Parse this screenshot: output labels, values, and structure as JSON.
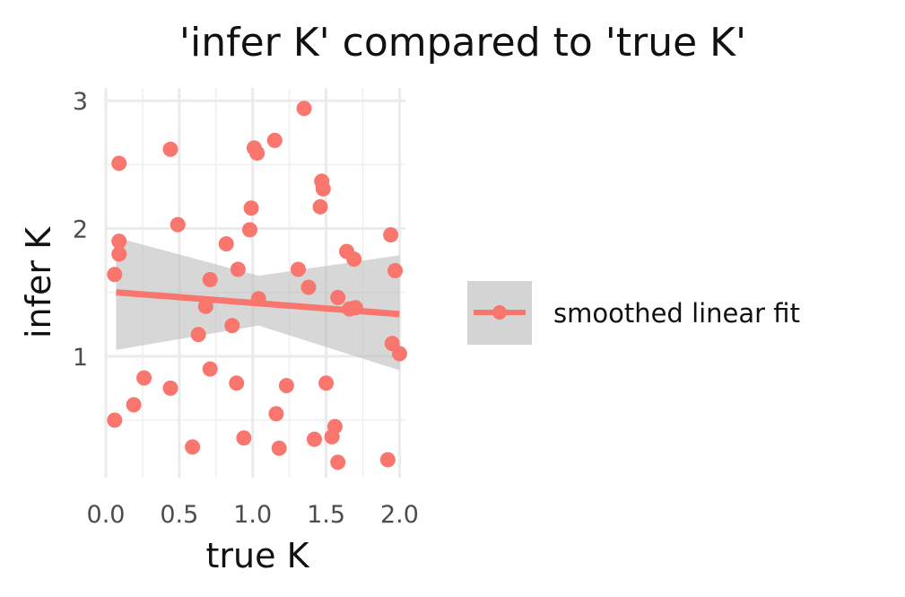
{
  "chart_data": {
    "type": "scatter",
    "title": "'infer K' compared to 'true K'",
    "xlabel": "true K",
    "ylabel": "infer K",
    "xlim": [
      0.0,
      2.04
    ],
    "ylim": [
      0.05,
      3.1
    ],
    "x_ticks": [
      0.0,
      0.5,
      1.0,
      1.5,
      2.0
    ],
    "x_tick_labels": [
      "0.0",
      "0.5",
      "1.0",
      "1.5",
      "2.0"
    ],
    "y_ticks": [
      1,
      2,
      3
    ],
    "y_tick_labels": [
      "1",
      "2",
      "3"
    ],
    "grid": true,
    "legend_position": "right",
    "point_color": "#f8766d",
    "fit_color": "#f8766d",
    "band_color": "#bdbdbd",
    "points": [
      [
        0.09,
        2.51
      ],
      [
        0.44,
        2.62
      ],
      [
        0.06,
        1.64
      ],
      [
        0.09,
        1.8
      ],
      [
        0.09,
        1.9
      ],
      [
        0.06,
        0.5
      ],
      [
        0.19,
        0.62
      ],
      [
        0.26,
        0.83
      ],
      [
        0.44,
        0.75
      ],
      [
        0.49,
        2.03
      ],
      [
        0.59,
        0.29
      ],
      [
        0.63,
        1.17
      ],
      [
        0.68,
        1.39
      ],
      [
        0.71,
        1.6
      ],
      [
        0.71,
        0.9
      ],
      [
        0.82,
        1.88
      ],
      [
        0.86,
        1.24
      ],
      [
        0.89,
        0.79
      ],
      [
        0.9,
        1.68
      ],
      [
        0.94,
        0.36
      ],
      [
        0.98,
        1.99
      ],
      [
        0.99,
        2.16
      ],
      [
        1.01,
        2.63
      ],
      [
        1.03,
        2.59
      ],
      [
        1.04,
        1.45
      ],
      [
        1.15,
        2.69
      ],
      [
        1.16,
        0.55
      ],
      [
        1.18,
        0.28
      ],
      [
        1.23,
        0.77
      ],
      [
        1.31,
        1.68
      ],
      [
        1.35,
        2.94
      ],
      [
        1.38,
        1.54
      ],
      [
        1.42,
        0.35
      ],
      [
        1.46,
        2.17
      ],
      [
        1.47,
        2.37
      ],
      [
        1.48,
        2.31
      ],
      [
        1.5,
        0.79
      ],
      [
        1.54,
        0.37
      ],
      [
        1.56,
        0.45
      ],
      [
        1.58,
        1.46
      ],
      [
        1.58,
        0.17
      ],
      [
        1.64,
        1.82
      ],
      [
        1.66,
        1.37
      ],
      [
        1.69,
        1.76
      ],
      [
        1.7,
        1.38
      ],
      [
        1.92,
        0.19
      ],
      [
        1.94,
        1.95
      ],
      [
        1.95,
        1.1
      ],
      [
        1.97,
        1.67
      ],
      [
        2.0,
        1.02
      ]
    ],
    "fit_line": {
      "x": [
        0.07,
        2.0
      ],
      "y": [
        1.5,
        1.33
      ]
    },
    "confidence_band": {
      "x": [
        0.07,
        1.04,
        2.0
      ],
      "upper": [
        1.93,
        1.63,
        1.79
      ],
      "lower": [
        1.05,
        1.24,
        0.89
      ]
    },
    "legend": {
      "label": "smoothed linear fit"
    }
  }
}
